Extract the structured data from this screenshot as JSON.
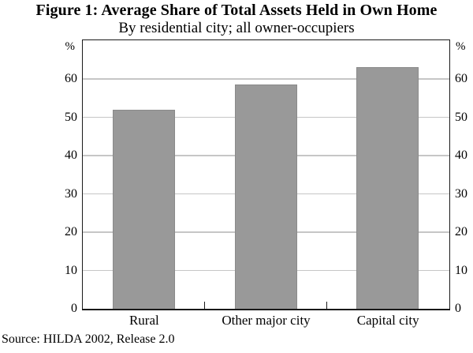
{
  "figure": {
    "title": "Figure 1: Average Share of Total Assets Held in Own Home",
    "subtitle": "By residential city; all owner-occupiers",
    "source": "Source: HILDA 2002, Release 2.0",
    "unit_left": "%",
    "unit_right": "%"
  },
  "chart_data": {
    "type": "bar",
    "title": "Figure 1: Average Share of Total Assets Held in Own Home",
    "subtitle": "By residential city; all owner-occupiers",
    "categories": [
      "Rural",
      "Other major city",
      "Capital city"
    ],
    "values": [
      52,
      58.5,
      63
    ],
    "ylabel": "%",
    "ylim": [
      0,
      70
    ],
    "yticks": [
      0,
      10,
      20,
      30,
      40,
      50,
      60
    ],
    "grid": true,
    "legend": "none",
    "bar_color": "#999999",
    "gridline_color": "#c6c6c6",
    "axis_color": "#1a1a1a",
    "source": "Source: HILDA 2002, Release 2.0"
  }
}
